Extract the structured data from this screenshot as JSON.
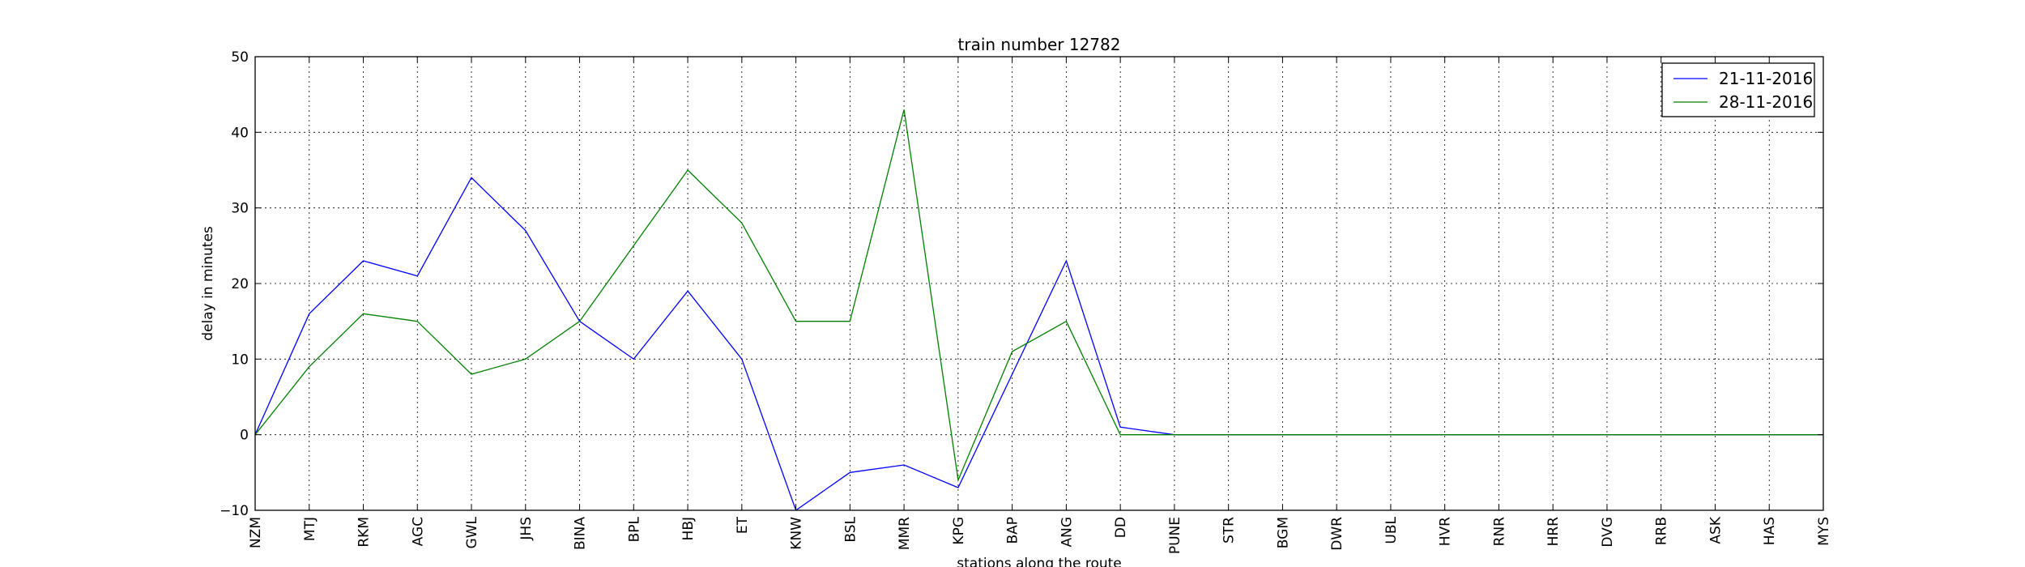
{
  "chart_data": {
    "type": "line",
    "title": "train number 12782",
    "xlabel": "stations along the route",
    "ylabel": "delay in minutes",
    "ylim": [
      -10,
      50
    ],
    "yticks": [
      -10,
      0,
      10,
      20,
      30,
      40,
      50
    ],
    "grid": true,
    "legend_position": "top-right",
    "categories": [
      "NZM",
      "MTJ",
      "RKM",
      "AGC",
      "GWL",
      "JHS",
      "BINA",
      "BPL",
      "HBJ",
      "ET",
      "KNW",
      "BSL",
      "MMR",
      "KPG",
      "BAP",
      "ANG",
      "DD",
      "PUNE",
      "STR",
      "BGM",
      "DWR",
      "UBL",
      "HVR",
      "RNR",
      "HRR",
      "DVG",
      "RRB",
      "ASK",
      "HAS",
      "MYS"
    ],
    "series": [
      {
        "name": "21-11-2016",
        "color": "#0000ff",
        "values": [
          0,
          16,
          23,
          21,
          34,
          27,
          15,
          10,
          19,
          10,
          -10,
          -5,
          -4,
          -7,
          8,
          23,
          1,
          0,
          0,
          0,
          0,
          0,
          0,
          0,
          0,
          0,
          0,
          0,
          0,
          0
        ]
      },
      {
        "name": "28-11-2016",
        "color": "#008000",
        "values": [
          0,
          9,
          16,
          15,
          8,
          10,
          15,
          25,
          35,
          28,
          15,
          15,
          43,
          -6,
          11,
          15,
          0,
          0,
          0,
          0,
          0,
          0,
          0,
          0,
          0,
          0,
          0,
          0,
          0,
          0
        ]
      }
    ]
  }
}
